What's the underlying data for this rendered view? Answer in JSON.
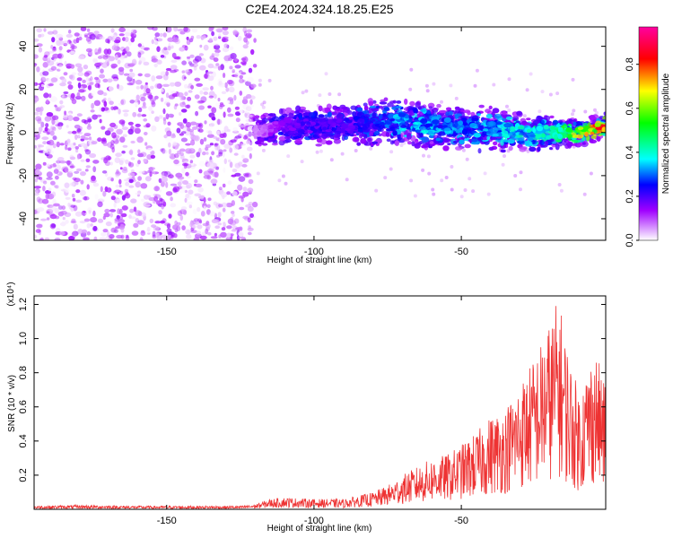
{
  "title": "C2E4.2024.324.18.25.E25",
  "chart_data": [
    {
      "type": "heatmap",
      "xlabel": "Height of straight line (km)",
      "ylabel": "Frequency (Hz)",
      "xlim": [
        -195,
        -1
      ],
      "ylim": [
        -50,
        49
      ],
      "xticks": [
        -150,
        -100,
        -50
      ],
      "yticks": [
        -40,
        -20,
        0,
        20,
        40
      ],
      "colorbar": {
        "label": "Normalized spectral amplitude",
        "range": [
          0,
          0.97
        ],
        "ticks": [
          0.0,
          0.2,
          0.4,
          0.6,
          0.8
        ],
        "colors": [
          "#ffffff",
          "#a000ff",
          "#0000ff",
          "#00ffff",
          "#00ff00",
          "#ffff00",
          "#ff0000",
          "#ff00a0"
        ]
      },
      "noise_region": {
        "x_range": [
          -195,
          -120
        ],
        "freq_range": [
          -50,
          49
        ],
        "amplitude": 0.05
      },
      "band": [
        {
          "x": -120,
          "freq": 0,
          "halfwidth": 5,
          "amplitude": 0.08
        },
        {
          "x": -110,
          "freq": 3,
          "halfwidth": 5,
          "amplitude": 0.2
        },
        {
          "x": -100,
          "freq": 3,
          "halfwidth": 6,
          "amplitude": 0.25
        },
        {
          "x": -90,
          "freq": 3,
          "halfwidth": 6,
          "amplitude": 0.25
        },
        {
          "x": -80,
          "freq": 5,
          "halfwidth": 7,
          "amplitude": 0.3
        },
        {
          "x": -70,
          "freq": 5,
          "halfwidth": 7,
          "amplitude": 0.4
        },
        {
          "x": -60,
          "freq": 3,
          "halfwidth": 7,
          "amplitude": 0.4
        },
        {
          "x": -50,
          "freq": 2,
          "halfwidth": 7,
          "amplitude": 0.35
        },
        {
          "x": -40,
          "freq": 2,
          "halfwidth": 7,
          "amplitude": 0.4
        },
        {
          "x": -30,
          "freq": 0,
          "halfwidth": 6,
          "amplitude": 0.45
        },
        {
          "x": -20,
          "freq": 0,
          "halfwidth": 5,
          "amplitude": 0.5
        },
        {
          "x": -10,
          "freq": 0,
          "halfwidth": 4,
          "amplitude": 0.75
        },
        {
          "x": -1,
          "freq": 3,
          "halfwidth": 4,
          "amplitude": 0.97
        }
      ]
    },
    {
      "type": "line",
      "xlabel": "Height of straight line (km)",
      "ylabel": "SNR (10 * v/v)",
      "yscale_label": "(x10⁴)",
      "xlim": [
        -195,
        -1
      ],
      "ylim": [
        0,
        1.25
      ],
      "xticks": [
        -150,
        -100,
        -50
      ],
      "yticks": [
        0.2,
        0.4,
        0.6,
        0.8,
        1.0,
        1.2
      ],
      "color": "#ee3333",
      "series": [
        {
          "x": [
            -195,
            -180,
            -160,
            -140,
            -125,
            -120,
            -115,
            -110,
            -100,
            -90,
            -80,
            -75,
            -70,
            -65,
            -60,
            -55,
            -50,
            -45,
            -40,
            -35,
            -30,
            -25,
            -20,
            -17,
            -15,
            -12,
            -10,
            -7,
            -5,
            -3,
            -1
          ],
          "y": [
            0.02,
            0.025,
            0.02,
            0.02,
            0.02,
            0.03,
            0.06,
            0.07,
            0.06,
            0.06,
            0.1,
            0.14,
            0.2,
            0.25,
            0.3,
            0.32,
            0.38,
            0.45,
            0.55,
            0.6,
            0.75,
            0.9,
            1.1,
            1.25,
            1.05,
            0.8,
            0.7,
            0.85,
            0.95,
            0.85,
            0.7
          ]
        }
      ]
    }
  ]
}
